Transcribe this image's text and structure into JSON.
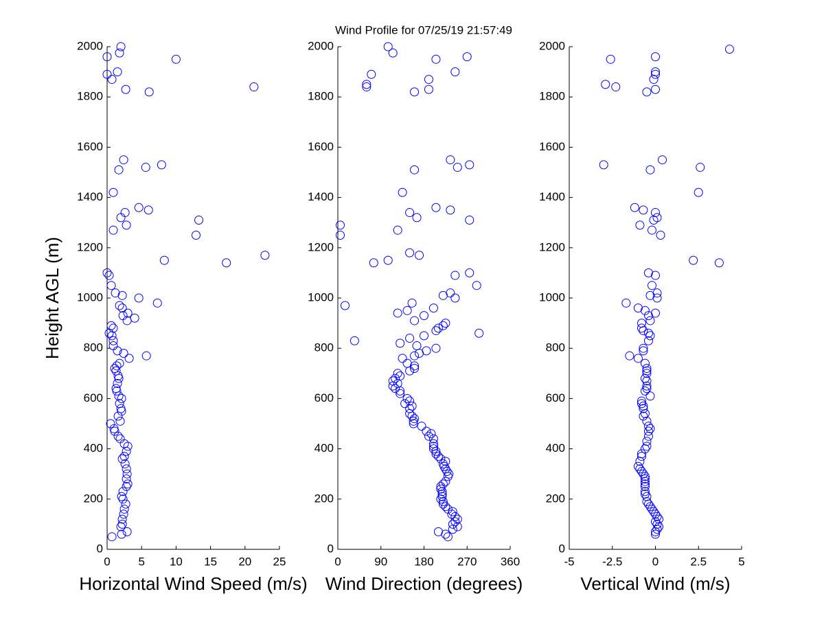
{
  "title": "Wind Profile for  07/25/19 21:57:49",
  "chart_data": [
    {
      "type": "scatter",
      "xlabel": "Horizontal Wind Speed (m/s)",
      "ylabel": "Height AGL (m)",
      "color": "#0000ff",
      "xlim": [
        0,
        25
      ],
      "xticks": [
        0,
        5,
        10,
        15,
        20,
        25
      ],
      "ylim": [
        0,
        2000
      ],
      "yticks": [
        0,
        200,
        400,
        600,
        800,
        1000,
        1200,
        1400,
        1600,
        1800,
        2000
      ],
      "x": [
        2.0,
        1.8,
        0,
        10.0,
        1.5,
        0,
        0.7,
        21.3,
        2.7,
        6.1,
        2.4,
        7.9,
        5.6,
        1.7,
        0.9,
        4.6,
        6.0,
        2.6,
        2.0,
        13.3,
        2.8,
        0.9,
        12.9,
        22.9,
        8.3,
        17.3,
        0,
        0.3,
        0.6,
        1.2,
        2.2,
        4.6,
        7.3,
        1.8,
        2.2,
        3.0,
        2.3,
        4.0,
        2.9,
        0.6,
        0.9,
        0.3,
        0.7,
        0.9,
        0.9,
        1.5,
        2.4,
        5.7,
        3.2,
        1.8,
        1.4,
        1.1,
        1.3,
        1.6,
        1.7,
        1.5,
        1.3,
        1.4,
        1.7,
        2.1,
        1.8,
        2.0,
        2.1,
        1.6,
        1.9,
        0.5,
        1.0,
        1.1,
        1.6,
        1.9,
        2.5,
        3.0,
        2.8,
        2.5,
        2.2,
        2.6,
        2.8,
        2.9,
        2.8,
        3.0,
        2.8,
        2.3,
        2.1,
        2.3,
        2.7,
        2.5,
        2.4,
        2.2,
        2.2,
        2.0,
        2.9,
        2.1,
        0.7
      ],
      "values": [
        2000,
        1975,
        1960,
        1950,
        1900,
        1890,
        1870,
        1840,
        1830,
        1820,
        1550,
        1530,
        1520,
        1510,
        1420,
        1360,
        1350,
        1340,
        1320,
        1310,
        1290,
        1270,
        1250,
        1170,
        1150,
        1140,
        1100,
        1090,
        1050,
        1020,
        1010,
        1000,
        980,
        970,
        960,
        940,
        930,
        920,
        910,
        890,
        880,
        860,
        850,
        830,
        810,
        790,
        780,
        770,
        760,
        740,
        730,
        720,
        710,
        690,
        680,
        660,
        640,
        630,
        610,
        600,
        580,
        560,
        550,
        530,
        510,
        500,
        480,
        470,
        450,
        440,
        420,
        410,
        390,
        370,
        360,
        340,
        320,
        300,
        280,
        260,
        250,
        230,
        210,
        200,
        180,
        160,
        140,
        120,
        100,
        90,
        70,
        60,
        50
      ]
    },
    {
      "type": "scatter",
      "xlabel": "Wind Direction (degrees)",
      "color": "#0000ff",
      "xlim": [
        0,
        360
      ],
      "xticks": [
        0,
        90,
        180,
        270,
        360
      ],
      "ylim": [
        0,
        2000
      ],
      "yticks": [
        0,
        200,
        400,
        600,
        800,
        1000,
        1200,
        1400,
        1600,
        1800,
        2000
      ],
      "x": [
        105,
        115,
        270,
        205,
        245,
        70,
        190,
        60,
        60,
        190,
        160,
        235,
        275,
        250,
        160,
        135,
        205,
        235,
        150,
        165,
        275,
        5,
        125,
        5,
        150,
        170,
        105,
        75,
        275,
        245,
        290,
        235,
        220,
        245,
        155,
        15,
        200,
        145,
        125,
        180,
        160,
        225,
        220,
        210,
        205,
        295,
        180,
        150,
        35,
        130,
        165,
        205,
        185,
        170,
        160,
        135,
        145,
        160,
        160,
        150,
        125,
        130,
        120,
        115,
        125,
        115,
        120,
        130,
        130,
        145,
        150,
        140,
        155,
        150,
        150,
        155,
        160,
        158,
        158,
        175,
        185,
        195,
        190,
        200,
        200,
        200,
        200,
        205,
        205,
        210,
        215,
        225,
        220,
        222,
        225,
        228,
        232,
        230,
        225,
        220,
        215,
        215,
        218,
        218,
        218,
        215,
        220,
        220,
        225,
        230,
        240,
        238,
        245,
        250,
        245,
        240,
        250,
        240,
        210,
        225,
        230
      ],
      "values": [
        2000,
        1975,
        1960,
        1950,
        1900,
        1890,
        1870,
        1850,
        1840,
        1830,
        1820,
        1550,
        1530,
        1520,
        1510,
        1420,
        1360,
        1350,
        1340,
        1320,
        1310,
        1290,
        1270,
        1250,
        1180,
        1170,
        1150,
        1140,
        1100,
        1090,
        1050,
        1020,
        1010,
        1000,
        980,
        970,
        960,
        950,
        940,
        930,
        910,
        900,
        890,
        880,
        870,
        860,
        850,
        840,
        830,
        820,
        810,
        800,
        790,
        780,
        770,
        760,
        740,
        730,
        720,
        710,
        700,
        690,
        680,
        670,
        660,
        650,
        640,
        630,
        620,
        600,
        590,
        580,
        570,
        560,
        540,
        530,
        520,
        510,
        500,
        490,
        470,
        460,
        450,
        440,
        420,
        410,
        400,
        390,
        380,
        370,
        360,
        350,
        340,
        330,
        320,
        310,
        300,
        290,
        270,
        260,
        250,
        240,
        230,
        220,
        210,
        200,
        190,
        180,
        170,
        160,
        150,
        140,
        130,
        120,
        110,
        100,
        90,
        80,
        70,
        60,
        50
      ]
    },
    {
      "type": "scatter",
      "xlabel": "Vertical Wind (m/s)",
      "color": "#0000ff",
      "xlim": [
        -5,
        5
      ],
      "xticks": [
        -5,
        -2.5,
        0,
        2.5,
        5
      ],
      "ylim": [
        0,
        2000
      ],
      "yticks": [
        0,
        200,
        400,
        600,
        800,
        1000,
        1200,
        1400,
        1600,
        1800,
        2000
      ],
      "x": [
        4.3,
        0,
        -2.6,
        0,
        0,
        -0.1,
        -2.9,
        -2.3,
        0,
        -0.5,
        0.4,
        -3.0,
        2.6,
        -0.3,
        2.5,
        -1.2,
        -0.7,
        0,
        0.1,
        -0.1,
        -0.9,
        -0.2,
        0.3,
        2.2,
        3.7,
        -0.4,
        0,
        -0.2,
        0.1,
        -0.3,
        0.1,
        -1.7,
        -1.0,
        -0.6,
        0,
        -0.4,
        -0.3,
        -0.8,
        -0.8,
        -0.7,
        -0.4,
        -0.3,
        -0.4,
        -0.7,
        -0.7,
        -1.5,
        -1.0,
        -0.6,
        -0.5,
        -0.5,
        -0.5,
        -0.6,
        -0.5,
        -0.5,
        -0.5,
        -0.6,
        -0.3,
        -0.8,
        -0.8,
        -0.7,
        -0.7,
        -0.6,
        -0.7,
        -0.5,
        -0.4,
        -0.3,
        -0.4,
        -0.4,
        -0.5,
        -0.5,
        -0.6,
        -0.8,
        -0.8,
        -0.9,
        -1.0,
        -0.9,
        -0.8,
        -0.7,
        -0.6,
        -0.6,
        -0.6,
        -0.6,
        -0.6,
        -0.6,
        -0.6,
        -0.5,
        -0.5,
        -0.4,
        -0.3,
        -0.2,
        -0.1,
        0,
        0.1,
        0.2,
        0,
        0.1,
        0.2,
        0.1,
        0,
        0
      ],
      "values": [
        1990,
        1960,
        1950,
        1900,
        1890,
        1870,
        1850,
        1840,
        1830,
        1820,
        1550,
        1530,
        1520,
        1510,
        1420,
        1360,
        1350,
        1340,
        1320,
        1310,
        1290,
        1270,
        1250,
        1150,
        1140,
        1100,
        1090,
        1050,
        1020,
        1010,
        1000,
        980,
        960,
        950,
        940,
        930,
        910,
        900,
        880,
        870,
        860,
        850,
        830,
        800,
        790,
        770,
        760,
        740,
        720,
        710,
        700,
        680,
        670,
        650,
        640,
        630,
        610,
        590,
        580,
        570,
        560,
        540,
        530,
        510,
        490,
        480,
        470,
        450,
        430,
        410,
        400,
        380,
        370,
        350,
        330,
        320,
        310,
        300,
        290,
        280,
        270,
        260,
        250,
        230,
        220,
        210,
        190,
        180,
        170,
        160,
        150,
        140,
        130,
        120,
        110,
        100,
        90,
        80,
        70,
        60
      ]
    }
  ]
}
